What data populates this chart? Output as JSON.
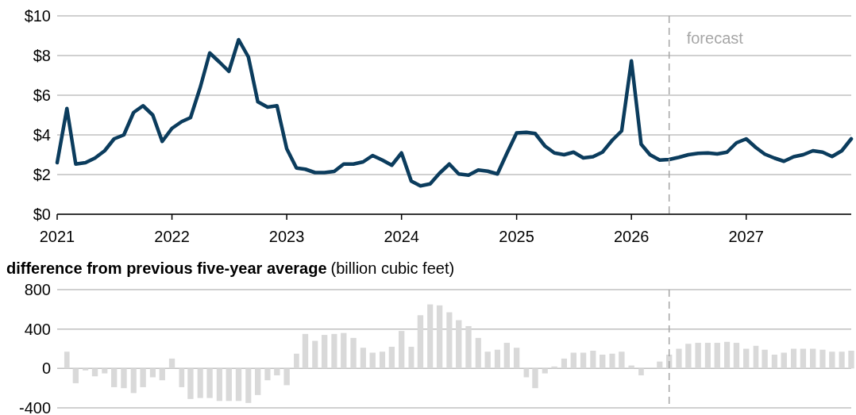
{
  "chart_data": [
    {
      "type": "line",
      "x": [
        "2021-01",
        "2021-02",
        "2021-03",
        "2021-04",
        "2021-05",
        "2021-06",
        "2021-07",
        "2021-08",
        "2021-09",
        "2021-10",
        "2021-11",
        "2021-12",
        "2022-01",
        "2022-02",
        "2022-03",
        "2022-04",
        "2022-05",
        "2022-06",
        "2022-07",
        "2022-08",
        "2022-09",
        "2022-10",
        "2022-11",
        "2022-12",
        "2023-01",
        "2023-02",
        "2023-03",
        "2023-04",
        "2023-05",
        "2023-06",
        "2023-07",
        "2023-08",
        "2023-09",
        "2023-10",
        "2023-11",
        "2023-12",
        "2024-01",
        "2024-02",
        "2024-03",
        "2024-04",
        "2024-05",
        "2024-06",
        "2024-07",
        "2024-08",
        "2024-09",
        "2024-10",
        "2024-11",
        "2024-12",
        "2025-01",
        "2025-02",
        "2025-03",
        "2025-04",
        "2025-05",
        "2025-06",
        "2025-07",
        "2025-08",
        "2025-09",
        "2025-10",
        "2025-11",
        "2025-12",
        "2026-01",
        "2026-02",
        "2026-03",
        "2026-04",
        "2026-05",
        "2026-06",
        "2026-07",
        "2026-08",
        "2026-09",
        "2026-10",
        "2026-11",
        "2026-12",
        "2027-01",
        "2027-02",
        "2027-03",
        "2027-04",
        "2027-05",
        "2027-06",
        "2027-07",
        "2027-08",
        "2027-09",
        "2027-10",
        "2027-11",
        "2027-12"
      ],
      "series": [
        {
          "color": "#0b3c5d",
          "values": [
            2.6,
            5.33,
            2.53,
            2.6,
            2.83,
            3.2,
            3.8,
            4.0,
            5.13,
            5.47,
            5.0,
            3.67,
            4.33,
            4.67,
            4.87,
            6.4,
            8.13,
            7.67,
            7.2,
            8.8,
            7.93,
            5.67,
            5.4,
            5.47,
            3.3,
            2.33,
            2.27,
            2.1,
            2.1,
            2.16,
            2.53,
            2.53,
            2.64,
            2.96,
            2.73,
            2.47,
            3.09,
            1.67,
            1.43,
            1.53,
            2.07,
            2.53,
            2.03,
            1.97,
            2.23,
            2.17,
            2.03,
            3.07,
            4.1,
            4.13,
            4.07,
            3.44,
            3.09,
            3.0,
            3.13,
            2.84,
            2.9,
            3.13,
            3.73,
            4.2,
            7.73,
            3.53,
            3.0,
            2.73,
            2.76,
            2.87,
            3.0,
            3.07,
            3.09,
            3.04,
            3.13,
            3.6,
            3.8,
            3.36,
            3.03,
            2.83,
            2.67,
            2.9,
            3.0,
            3.2,
            3.13,
            2.91,
            3.2,
            3.8
          ]
        }
      ],
      "xlim": [
        "2021-01",
        "2027-12"
      ],
      "xticks": [
        {
          "value": "2021",
          "label": "2021"
        },
        {
          "value": "2022",
          "label": "2022"
        },
        {
          "value": "2023",
          "label": "2023"
        },
        {
          "value": "2024",
          "label": "2024"
        },
        {
          "value": "2025",
          "label": "2025"
        },
        {
          "value": "2026",
          "label": "2026"
        },
        {
          "value": "2027",
          "label": "2027"
        }
      ],
      "ylim": [
        0,
        10
      ],
      "yticks": [
        {
          "value": 0,
          "label": "$0"
        },
        {
          "value": 2,
          "label": "$2"
        },
        {
          "value": 4,
          "label": "$4"
        },
        {
          "value": 6,
          "label": "$6"
        },
        {
          "value": 8,
          "label": "$8"
        },
        {
          "value": 10,
          "label": "$10"
        }
      ],
      "grid": "y",
      "ref_lines": [
        {
          "axis": "x",
          "value": "2026-05",
          "label": "forecast",
          "color": "#a6a6a6",
          "line_style": "dashed"
        }
      ]
    },
    {
      "type": "bar",
      "title": "difference from previous five-year average",
      "subtitle": "(billion cubic feet)",
      "x": [
        "2021-02",
        "2021-03",
        "2021-04",
        "2021-05",
        "2021-06",
        "2021-07",
        "2021-08",
        "2021-09",
        "2021-10",
        "2021-11",
        "2021-12",
        "2022-01",
        "2022-02",
        "2022-03",
        "2022-04",
        "2022-05",
        "2022-06",
        "2022-07",
        "2022-08",
        "2022-09",
        "2022-10",
        "2022-11",
        "2022-12",
        "2023-01",
        "2023-02",
        "2023-03",
        "2023-04",
        "2023-05",
        "2023-06",
        "2023-07",
        "2023-08",
        "2023-09",
        "2023-10",
        "2023-11",
        "2023-12",
        "2024-01",
        "2024-02",
        "2024-03",
        "2024-04",
        "2024-05",
        "2024-06",
        "2024-07",
        "2024-08",
        "2024-09",
        "2024-10",
        "2024-11",
        "2024-12",
        "2025-01",
        "2025-02",
        "2025-03",
        "2025-04",
        "2025-05",
        "2025-06",
        "2025-07",
        "2025-08",
        "2025-09",
        "2025-10",
        "2025-11",
        "2025-12",
        "2026-01",
        "2026-02",
        "2026-03",
        "2026-04",
        "2026-05",
        "2026-06",
        "2026-07",
        "2026-08",
        "2026-09",
        "2026-10",
        "2026-11",
        "2026-12",
        "2027-01",
        "2027-02",
        "2027-03",
        "2027-04",
        "2027-05",
        "2027-06",
        "2027-07",
        "2027-08",
        "2027-09",
        "2027-10",
        "2027-11",
        "2027-12"
      ],
      "series": [
        {
          "color": "#d9d9d9",
          "values": [
            170,
            -150,
            -20,
            -80,
            -50,
            -190,
            -200,
            -250,
            -190,
            -90,
            -120,
            100,
            -190,
            -310,
            -300,
            -300,
            -330,
            -330,
            -330,
            -350,
            -270,
            -120,
            -70,
            -170,
            150,
            350,
            280,
            340,
            350,
            360,
            310,
            210,
            160,
            170,
            220,
            380,
            220,
            540,
            650,
            640,
            570,
            490,
            430,
            310,
            170,
            190,
            260,
            210,
            -90,
            -200,
            -50,
            20,
            100,
            160,
            160,
            180,
            140,
            150,
            170,
            30,
            -70,
            null,
            70,
            140,
            200,
            250,
            260,
            260,
            260,
            270,
            260,
            200,
            230,
            190,
            140,
            160,
            200,
            200,
            200,
            190,
            170,
            170,
            180
          ]
        }
      ],
      "xlim": [
        "2021-01",
        "2027-12"
      ],
      "ylim": [
        -400,
        800
      ],
      "yticks": [
        -400,
        0,
        400,
        800
      ],
      "grid": "y",
      "tick_labels": "y",
      "ref_lines": [
        {
          "axis": "x",
          "value": "2026-05",
          "color": "#a6a6a6",
          "line_style": "dashed"
        }
      ]
    }
  ]
}
